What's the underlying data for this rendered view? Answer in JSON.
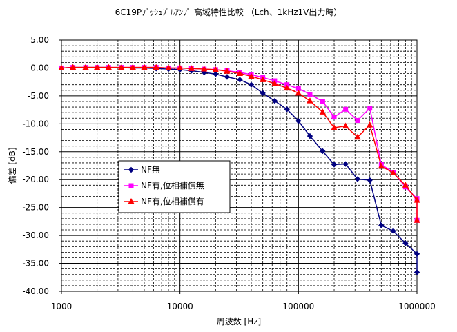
{
  "chart_data": {
    "type": "line",
    "title": "6C19Pﾌﾟｯｼｭﾌﾟﾙｱﾝﾌﾟ 高域特性比較 （Lch、1kHz1V出力時）",
    "xlabel": "周波数 [Hz]",
    "ylabel": "偏差 [dB]",
    "x_scale": "log",
    "xlim": [
      1000,
      1000000
    ],
    "ylim": [
      -40,
      5
    ],
    "x_ticks": [
      "1000",
      "10000",
      "100000",
      "1000000"
    ],
    "y_ticks": [
      "5.00",
      "0.00",
      "-5.00",
      "-10.00",
      "-15.00",
      "-20.00",
      "-25.00",
      "-30.00",
      "-35.00",
      "-40.00"
    ],
    "grid": true,
    "legend_position": "center-left",
    "series": [
      {
        "name": "NF無",
        "color": "#000080",
        "marker": "diamond",
        "points": [
          [
            1000,
            0.0
          ],
          [
            1250,
            0.1
          ],
          [
            1600,
            0.1
          ],
          [
            2000,
            0.1
          ],
          [
            2500,
            0.1
          ],
          [
            3200,
            0.05
          ],
          [
            4000,
            0.0
          ],
          [
            5000,
            0.0
          ],
          [
            6300,
            -0.1
          ],
          [
            8000,
            -0.2
          ],
          [
            10000,
            -0.3
          ],
          [
            12500,
            -0.5
          ],
          [
            16000,
            -0.8
          ],
          [
            20000,
            -1.1
          ],
          [
            25000,
            -1.6
          ],
          [
            32000,
            -2.1
          ],
          [
            40000,
            -3.0
          ],
          [
            50000,
            -4.5
          ],
          [
            63000,
            -5.9
          ],
          [
            80000,
            -7.4
          ],
          [
            100000,
            -9.5
          ],
          [
            125000,
            -12.2
          ],
          [
            160000,
            -14.9
          ],
          [
            200000,
            -17.3
          ],
          [
            250000,
            -17.2
          ],
          [
            315000,
            -19.9
          ],
          [
            400000,
            -20.1
          ],
          [
            500000,
            -28.2
          ],
          [
            630000,
            -29.2
          ],
          [
            800000,
            -31.4
          ],
          [
            1000000,
            -33.3
          ],
          [
            1050000,
            -36.6
          ]
        ]
      },
      {
        "name": "NF有,位相補償無",
        "color": "#FF00FF",
        "marker": "square",
        "points": [
          [
            1000,
            0.0
          ],
          [
            1250,
            0.1
          ],
          [
            1600,
            0.1
          ],
          [
            2000,
            0.1
          ],
          [
            2500,
            0.1
          ],
          [
            3200,
            0.1
          ],
          [
            4000,
            0.1
          ],
          [
            5000,
            0.1
          ],
          [
            6300,
            0.1
          ],
          [
            8000,
            0.0
          ],
          [
            10000,
            0.0
          ],
          [
            12500,
            -0.1
          ],
          [
            16000,
            -0.2
          ],
          [
            20000,
            -0.3
          ],
          [
            25000,
            -0.5
          ],
          [
            32000,
            -0.8
          ],
          [
            40000,
            -1.2
          ],
          [
            50000,
            -1.7
          ],
          [
            63000,
            -2.3
          ],
          [
            80000,
            -3.0
          ],
          [
            100000,
            -3.7
          ],
          [
            125000,
            -4.7
          ],
          [
            160000,
            -6.0
          ],
          [
            200000,
            -8.8
          ],
          [
            250000,
            -7.4
          ],
          [
            315000,
            -9.4
          ],
          [
            400000,
            -7.2
          ],
          [
            500000,
            -17.3
          ],
          [
            630000,
            -18.7
          ],
          [
            800000,
            -21.3
          ],
          [
            1000000,
            -23.4
          ],
          [
            1050000,
            -27.3
          ]
        ]
      },
      {
        "name": "NF有,位相補償有",
        "color": "#FF0000",
        "marker": "triangle",
        "points": [
          [
            1000,
            0.0
          ],
          [
            1250,
            0.1
          ],
          [
            1600,
            0.1
          ],
          [
            2000,
            0.1
          ],
          [
            2500,
            0.1
          ],
          [
            3200,
            0.1
          ],
          [
            4000,
            0.1
          ],
          [
            5000,
            0.1
          ],
          [
            6300,
            0.1
          ],
          [
            8000,
            0.0
          ],
          [
            10000,
            0.0
          ],
          [
            12500,
            -0.1
          ],
          [
            16000,
            -0.2
          ],
          [
            20000,
            -0.3
          ],
          [
            25000,
            -0.6
          ],
          [
            32000,
            -1.0
          ],
          [
            40000,
            -1.5
          ],
          [
            50000,
            -2.1
          ],
          [
            63000,
            -2.8
          ],
          [
            80000,
            -3.6
          ],
          [
            100000,
            -4.5
          ],
          [
            125000,
            -5.9
          ],
          [
            160000,
            -7.9
          ],
          [
            200000,
            -10.7
          ],
          [
            250000,
            -10.4
          ],
          [
            315000,
            -12.4
          ],
          [
            400000,
            -10.2
          ],
          [
            500000,
            -17.6
          ],
          [
            630000,
            -18.8
          ],
          [
            800000,
            -21.0
          ],
          [
            1000000,
            -23.7
          ],
          [
            1050000,
            -27.3
          ]
        ]
      }
    ]
  }
}
